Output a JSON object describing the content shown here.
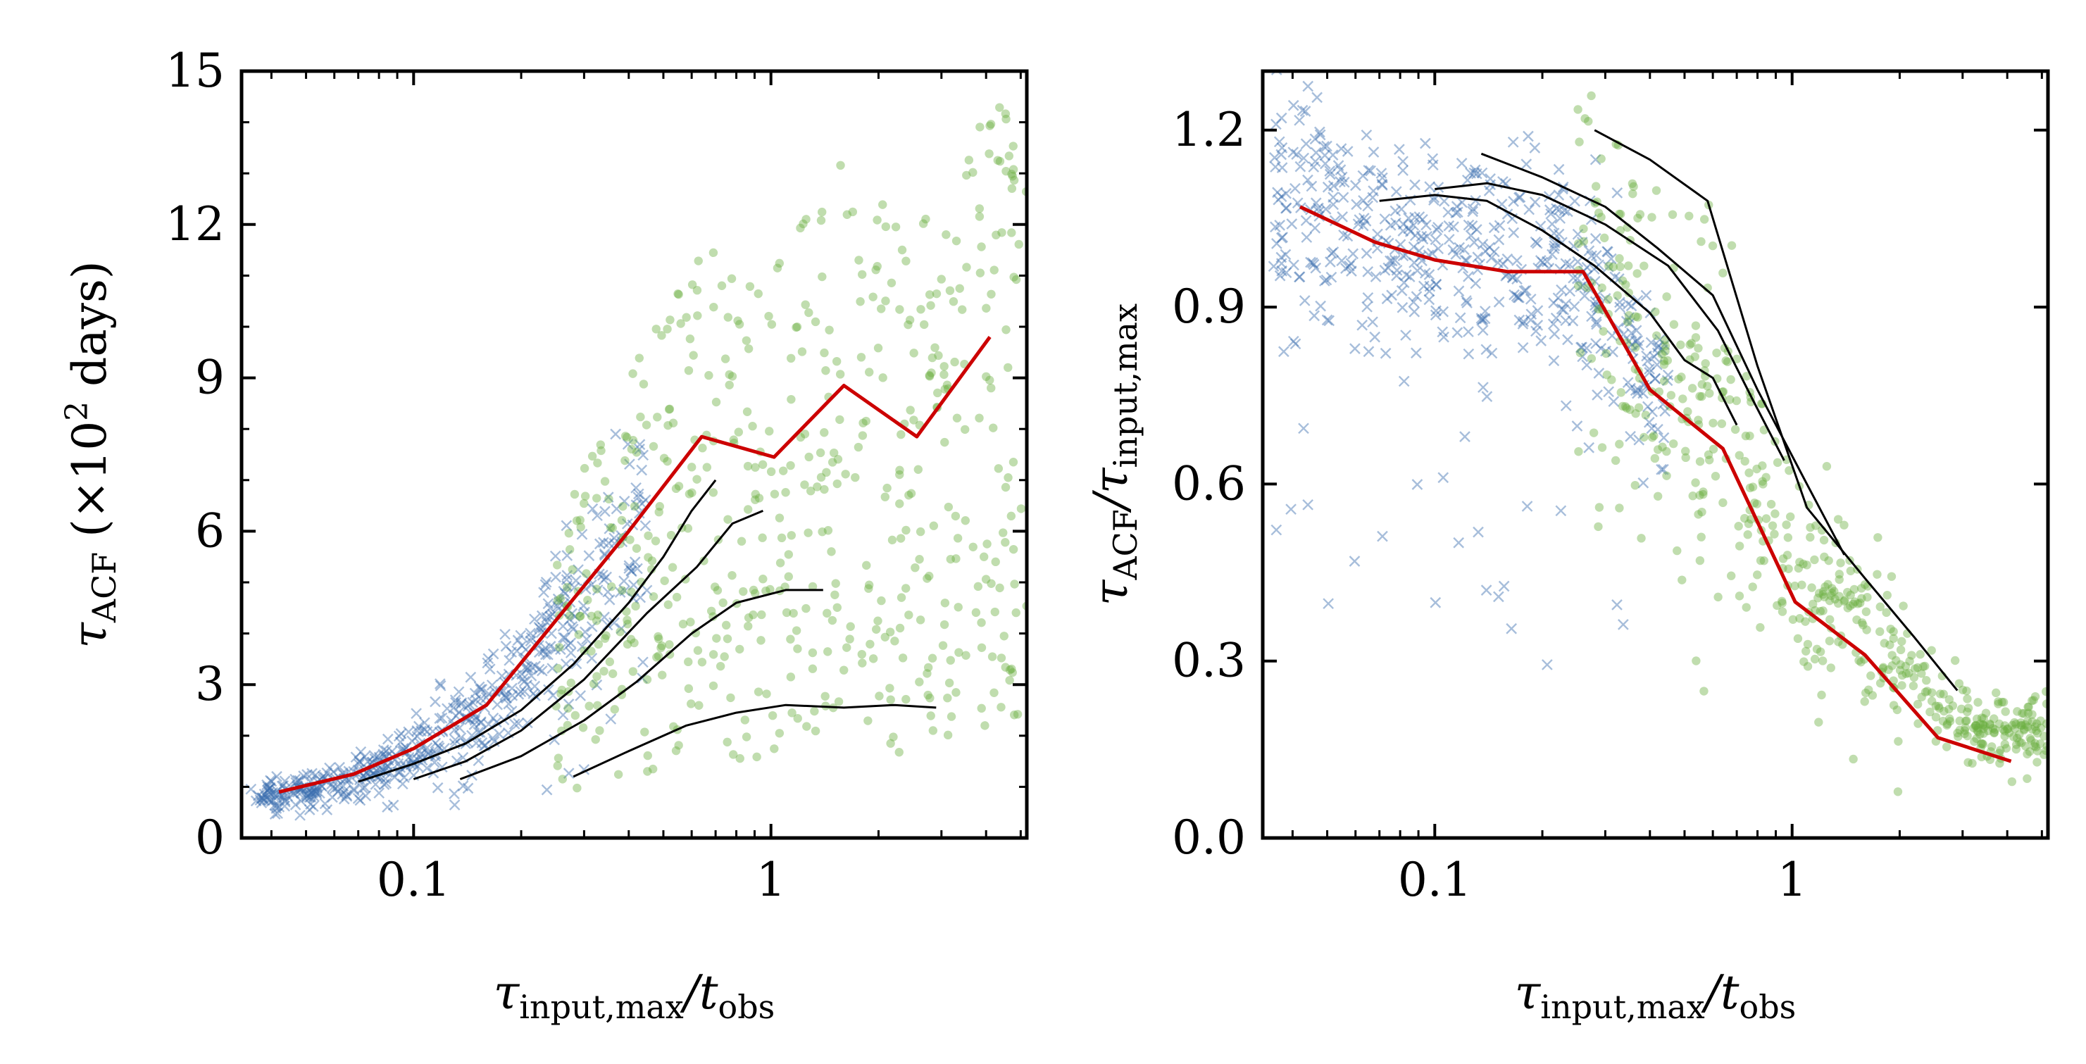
{
  "chart_data": [
    {
      "type": "scatter",
      "title": "",
      "xlabel": {
        "base": "τ",
        "sub": "input,max",
        "mid": "/t",
        "sub2": "obs"
      },
      "ylabel": {
        "base": "τ",
        "sub": "ACF",
        "paren_open": " (×10",
        "sup": "2",
        "paren_close": " days)"
      },
      "xscale": "log",
      "xlim": [
        0.033,
        5.2
      ],
      "ylim": [
        0,
        15
      ],
      "xticks": [
        {
          "v": 0.1,
          "label": "0.1"
        },
        {
          "v": 1,
          "label": "1"
        }
      ],
      "yticks": [
        {
          "v": 0,
          "label": "0"
        },
        {
          "v": 3,
          "label": "3"
        },
        {
          "v": 6,
          "label": "6"
        },
        {
          "v": 9,
          "label": "9"
        },
        {
          "v": 12,
          "label": "12"
        },
        {
          "v": 15,
          "label": "15"
        }
      ],
      "scatter_blue": {
        "color": "#3b6fb0",
        "marker": "x",
        "x_range": [
          0.035,
          0.45
        ],
        "count": 520
      },
      "scatter_green": {
        "color": "#6aad3d",
        "marker": "circle",
        "x_range": [
          0.25,
          5.2
        ],
        "count": 560
      },
      "series": [
        {
          "color": "#cc0000",
          "x": [
            0.042,
            0.068,
            0.1,
            0.16,
            0.26,
            0.4,
            0.64,
            1.02,
            1.6,
            2.56,
            4.1
          ],
          "y": [
            0.9,
            1.25,
            1.75,
            2.6,
            4.4,
            6.0,
            7.85,
            7.45,
            8.85,
            7.85,
            9.8
          ]
        },
        {
          "color": "#000000",
          "x": [
            0.07,
            0.1,
            0.14,
            0.2,
            0.28,
            0.4,
            0.5,
            0.6,
            0.7
          ],
          "y": [
            1.1,
            1.45,
            1.85,
            2.5,
            3.4,
            4.6,
            5.5,
            6.4,
            7.0
          ]
        },
        {
          "color": "#000000",
          "x": [
            0.1,
            0.14,
            0.2,
            0.3,
            0.45,
            0.62,
            0.78,
            0.95
          ],
          "y": [
            1.15,
            1.5,
            2.1,
            3.1,
            4.4,
            5.3,
            6.15,
            6.4
          ]
        },
        {
          "color": "#000000",
          "x": [
            0.135,
            0.2,
            0.3,
            0.42,
            0.6,
            0.8,
            1.1,
            1.4
          ],
          "y": [
            1.15,
            1.6,
            2.3,
            3.05,
            4.0,
            4.6,
            4.85,
            4.85
          ]
        },
        {
          "color": "#000000",
          "x": [
            0.28,
            0.4,
            0.58,
            0.8,
            1.1,
            1.6,
            2.2,
            2.9
          ],
          "y": [
            1.2,
            1.7,
            2.2,
            2.45,
            2.6,
            2.55,
            2.6,
            2.55
          ]
        }
      ]
    },
    {
      "type": "scatter",
      "title": "",
      "xlabel": {
        "base": "τ",
        "sub": "input,max",
        "mid": "/t",
        "sub2": "obs"
      },
      "ylabel": {
        "base": "τ",
        "sub": "ACF",
        "mid": "/τ",
        "sub2": "input,max"
      },
      "xscale": "log",
      "xlim": [
        0.033,
        5.2
      ],
      "ylim": [
        0,
        1.3
      ],
      "xticks": [
        {
          "v": 0.1,
          "label": "0.1"
        },
        {
          "v": 1,
          "label": "1"
        }
      ],
      "yticks": [
        {
          "v": 0,
          "label": "0.0"
        },
        {
          "v": 0.3,
          "label": "0.3"
        },
        {
          "v": 0.6,
          "label": "0.6"
        },
        {
          "v": 0.9,
          "label": "0.9"
        },
        {
          "v": 1.2,
          "label": "1.2"
        }
      ],
      "scatter_blue": {
        "color": "#3b6fb0",
        "marker": "x",
        "x_range": [
          0.035,
          0.45
        ],
        "count": 520
      },
      "scatter_green": {
        "color": "#6aad3d",
        "marker": "circle",
        "x_range": [
          0.25,
          5.2
        ],
        "count": 560
      },
      "series": [
        {
          "color": "#cc0000",
          "x": [
            0.042,
            0.068,
            0.1,
            0.16,
            0.26,
            0.4,
            0.64,
            1.02,
            1.6,
            2.56,
            4.1
          ],
          "y": [
            1.07,
            1.01,
            0.98,
            0.96,
            0.96,
            0.76,
            0.66,
            0.4,
            0.31,
            0.17,
            0.13
          ]
        },
        {
          "color": "#000000",
          "x": [
            0.07,
            0.1,
            0.14,
            0.2,
            0.28,
            0.4,
            0.5,
            0.6,
            0.7
          ],
          "y": [
            1.08,
            1.09,
            1.08,
            1.03,
            0.97,
            0.89,
            0.81,
            0.78,
            0.7
          ]
        },
        {
          "color": "#000000",
          "x": [
            0.1,
            0.14,
            0.2,
            0.3,
            0.45,
            0.62,
            0.78,
            0.95
          ],
          "y": [
            1.1,
            1.11,
            1.09,
            1.04,
            0.97,
            0.86,
            0.74,
            0.64
          ]
        },
        {
          "color": "#000000",
          "x": [
            0.135,
            0.2,
            0.3,
            0.42,
            0.6,
            0.8,
            1.1,
            1.4
          ],
          "y": [
            1.16,
            1.12,
            1.07,
            1.0,
            0.92,
            0.76,
            0.6,
            0.48
          ]
        },
        {
          "color": "#000000",
          "x": [
            0.28,
            0.4,
            0.58,
            0.8,
            1.1,
            1.6,
            2.2,
            2.9
          ],
          "y": [
            1.2,
            1.15,
            1.08,
            0.8,
            0.56,
            0.44,
            0.34,
            0.25
          ]
        }
      ]
    }
  ]
}
